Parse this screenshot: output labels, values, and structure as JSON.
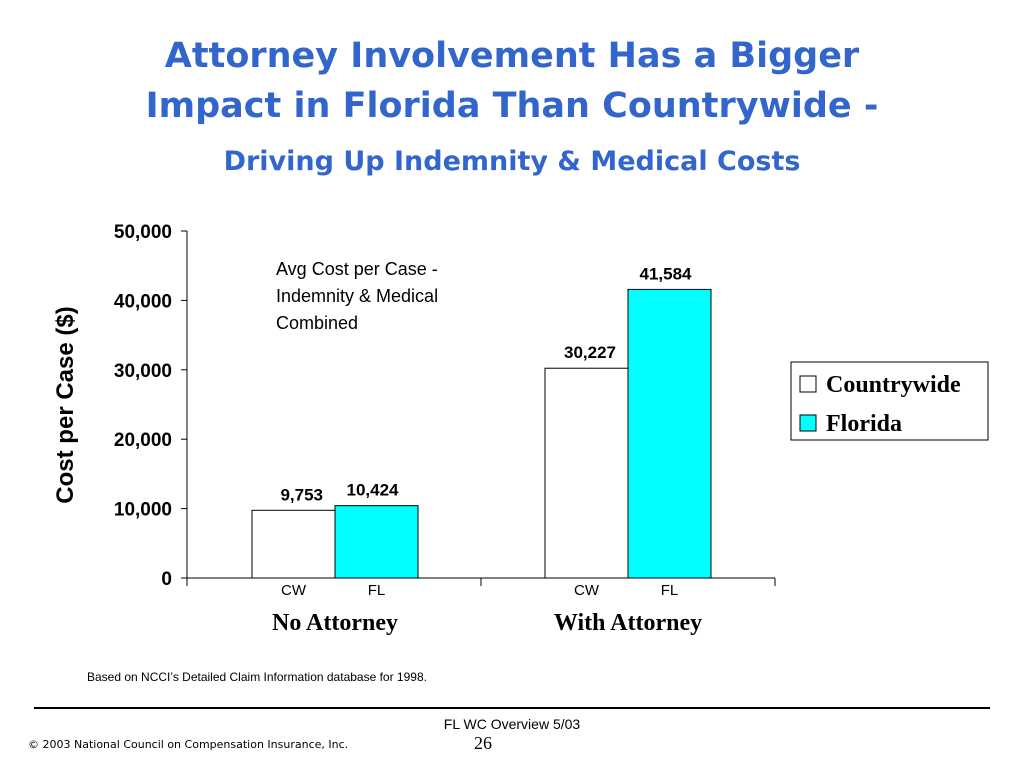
{
  "title_line1": "Attorney Involvement Has a Bigger",
  "title_line2": "Impact in Florida Than Countrywide -",
  "subtitle": "Driving Up Indemnity & Medical Costs",
  "footnote": "Based on NCCI’s Detailed Claim Information database for 1998.",
  "footer_text": "FL WC Overview 5/03",
  "page_number": "26",
  "copyright": "© 2003 National Council on Compensation Insurance, Inc.",
  "colors": {
    "countrywide": "#ffffff",
    "florida": "#00ffff",
    "title": "#3366cc"
  },
  "chart_data": {
    "type": "bar",
    "ylabel": "Cost per Case ($)",
    "ylim": [
      0,
      50000
    ],
    "yticks": [
      "0",
      "10,000",
      "20,000",
      "30,000",
      "40,000",
      "50,000"
    ],
    "annotation": [
      "Avg Cost per Case -",
      "Indemnity & Medical",
      "Combined"
    ],
    "groups": [
      {
        "label": "No Attorney",
        "bars": [
          {
            "series": "Countrywide",
            "short": "CW",
            "value": 9753,
            "label": "9,753"
          },
          {
            "series": "Florida",
            "short": "FL",
            "value": 10424,
            "label": "10,424"
          }
        ]
      },
      {
        "label": "With Attorney",
        "bars": [
          {
            "series": "Countrywide",
            "short": "CW",
            "value": 30227,
            "label": "30,227"
          },
          {
            "series": "Florida",
            "short": "FL",
            "value": 41584,
            "label": "41,584"
          }
        ]
      }
    ],
    "legend": [
      {
        "name": "Countrywide",
        "color": "#ffffff"
      },
      {
        "name": "Florida",
        "color": "#00ffff"
      }
    ],
    "legend_position": "right"
  }
}
